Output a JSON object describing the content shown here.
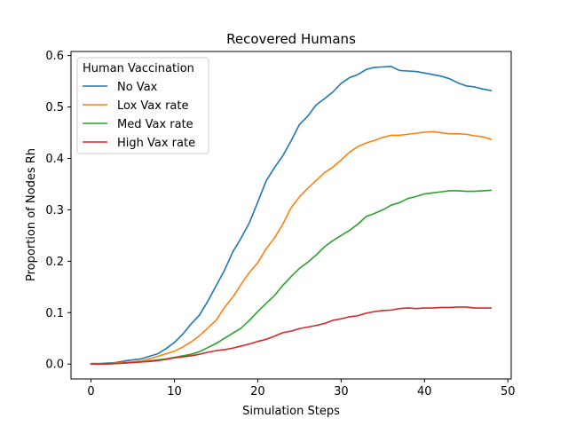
{
  "chart_data": {
    "type": "line",
    "title": "Recovered Humans",
    "xlabel": "Simulation Steps",
    "ylabel": "Proportion of Nodes Rh",
    "xlim": [
      -2.4,
      50.4
    ],
    "ylim": [
      -0.029,
      0.608
    ],
    "xticks": [
      "0",
      "10",
      "20",
      "30",
      "40",
      "50"
    ],
    "xtick_values": [
      0,
      10,
      20,
      30,
      40,
      50
    ],
    "yticks": [
      "0.0",
      "0.1",
      "0.2",
      "0.3",
      "0.4",
      "0.5",
      "0.6"
    ],
    "ytick_values": [
      0.0,
      0.1,
      0.2,
      0.3,
      0.4,
      0.5,
      0.6
    ],
    "grid": false,
    "legend": {
      "title": "Human Vaccination",
      "placement": "top-left"
    },
    "x": [
      0,
      1,
      2,
      3,
      4,
      5,
      6,
      7,
      8,
      9,
      10,
      11,
      12,
      13,
      14,
      15,
      16,
      17,
      18,
      19,
      20,
      21,
      22,
      23,
      24,
      25,
      26,
      27,
      28,
      29,
      30,
      31,
      32,
      33,
      34,
      35,
      36,
      37,
      38,
      39,
      40,
      41,
      42,
      43,
      44,
      45,
      46,
      47,
      48
    ],
    "series": [
      {
        "name": "No Vax",
        "color": "#1f77b4",
        "values": [
          0.001,
          0.001,
          0.002,
          0.003,
          0.006,
          0.008,
          0.01,
          0.015,
          0.02,
          0.03,
          0.042,
          0.058,
          0.078,
          0.095,
          0.122,
          0.152,
          0.182,
          0.218,
          0.245,
          0.275,
          0.315,
          0.356,
          0.382,
          0.405,
          0.434,
          0.466,
          0.482,
          0.504,
          0.516,
          0.529,
          0.546,
          0.557,
          0.563,
          0.573,
          0.577,
          0.578,
          0.579,
          0.571,
          0.57,
          0.569,
          0.566,
          0.563,
          0.56,
          0.555,
          0.547,
          0.541,
          0.539,
          0.535,
          0.532
        ]
      },
      {
        "name": "Lox Vax rate",
        "color": "#ff7f0e",
        "values": [
          0.001,
          0.001,
          0.001,
          0.002,
          0.003,
          0.004,
          0.006,
          0.01,
          0.015,
          0.02,
          0.025,
          0.033,
          0.043,
          0.055,
          0.07,
          0.085,
          0.11,
          0.13,
          0.155,
          0.178,
          0.197,
          0.224,
          0.245,
          0.272,
          0.304,
          0.325,
          0.342,
          0.357,
          0.372,
          0.383,
          0.397,
          0.412,
          0.423,
          0.43,
          0.435,
          0.441,
          0.445,
          0.445,
          0.447,
          0.449,
          0.451,
          0.452,
          0.45,
          0.448,
          0.448,
          0.447,
          0.444,
          0.442,
          0.437
        ]
      },
      {
        "name": "Med Vax rate",
        "color": "#2ca02c",
        "values": [
          0.0,
          0.0,
          0.001,
          0.001,
          0.002,
          0.003,
          0.004,
          0.006,
          0.008,
          0.01,
          0.013,
          0.016,
          0.019,
          0.024,
          0.032,
          0.04,
          0.05,
          0.06,
          0.07,
          0.085,
          0.102,
          0.118,
          0.133,
          0.153,
          0.17,
          0.186,
          0.198,
          0.212,
          0.228,
          0.24,
          0.25,
          0.26,
          0.272,
          0.287,
          0.293,
          0.3,
          0.309,
          0.314,
          0.322,
          0.326,
          0.331,
          0.333,
          0.335,
          0.337,
          0.337,
          0.336,
          0.336,
          0.337,
          0.338
        ]
      },
      {
        "name": "High Vax rate",
        "color": "#d62728",
        "values": [
          0.0,
          0.0,
          0.0,
          0.001,
          0.002,
          0.003,
          0.004,
          0.005,
          0.007,
          0.009,
          0.012,
          0.014,
          0.016,
          0.019,
          0.023,
          0.026,
          0.028,
          0.031,
          0.035,
          0.039,
          0.044,
          0.048,
          0.054,
          0.061,
          0.064,
          0.069,
          0.072,
          0.075,
          0.079,
          0.085,
          0.088,
          0.092,
          0.094,
          0.099,
          0.102,
          0.104,
          0.105,
          0.108,
          0.109,
          0.108,
          0.109,
          0.109,
          0.11,
          0.11,
          0.111,
          0.111,
          0.109,
          0.109,
          0.109
        ]
      }
    ]
  }
}
